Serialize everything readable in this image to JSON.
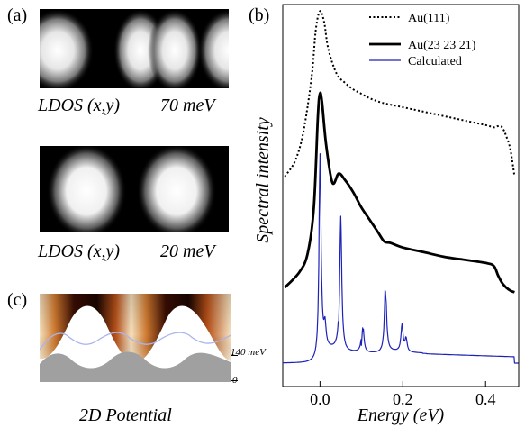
{
  "panels": {
    "a": {
      "letter": "(a)",
      "images": [
        {
          "caption_left": "LDOS (x,y)",
          "caption_right": "70 meV"
        },
        {
          "caption_left": "LDOS (x,y)",
          "caption_right": "20 meV"
        }
      ]
    },
    "b": {
      "letter": "(b)"
    },
    "c": {
      "letter": "(c)",
      "tick_upper": "140 meV",
      "tick_lower": "0",
      "caption": "2D  Potential"
    }
  },
  "colors": {
    "calculated": "#1c22b8",
    "potential_dark": "#1a0500",
    "potential_mid": "#b8521a",
    "potential_light": "#f6e2c0",
    "ground": "#a0a0a0"
  },
  "chart_data": {
    "type": "line",
    "xlabel": "Energy (eV)",
    "ylabel": "Spectral intensity",
    "xlim": [
      -0.09,
      0.48
    ],
    "xticks": [
      0.0,
      0.2,
      0.4
    ],
    "xtick_labels": [
      "0.0",
      "0.2",
      "0.4"
    ],
    "ylim": [
      0,
      1
    ],
    "yticks": [],
    "grid": false,
    "legend_position": "top-right",
    "series": [
      {
        "name": "Au(111)",
        "style": "dotted",
        "color": "#000000",
        "x": [
          -0.085,
          -0.06,
          -0.04,
          -0.02,
          -0.01,
          0.0,
          0.01,
          0.02,
          0.04,
          0.06,
          0.08,
          0.1,
          0.12,
          0.15,
          0.2,
          0.25,
          0.3,
          0.35,
          0.4,
          0.42,
          0.43,
          0.44,
          0.45,
          0.46,
          0.47
        ],
        "y": [
          0.17,
          0.24,
          0.37,
          0.62,
          0.83,
          0.91,
          0.86,
          0.74,
          0.63,
          0.59,
          0.56,
          0.54,
          0.52,
          0.5,
          0.48,
          0.46,
          0.44,
          0.42,
          0.4,
          0.39,
          0.395,
          0.39,
          0.35,
          0.29,
          0.17
        ]
      },
      {
        "name": "Au(23 23 21)",
        "style": "solid",
        "color": "#000000",
        "x": [
          -0.085,
          -0.05,
          -0.03,
          -0.015,
          -0.005,
          0.0,
          0.005,
          0.015,
          0.03,
          0.045,
          0.06,
          0.08,
          0.1,
          0.12,
          0.14,
          0.155,
          0.17,
          0.2,
          0.25,
          0.3,
          0.35,
          0.4,
          0.42,
          0.43,
          0.44,
          0.45,
          0.46,
          0.47
        ],
        "y": [
          0.02,
          0.07,
          0.13,
          0.28,
          0.58,
          0.65,
          0.62,
          0.48,
          0.36,
          0.39,
          0.37,
          0.33,
          0.28,
          0.24,
          0.2,
          0.17,
          0.165,
          0.15,
          0.135,
          0.12,
          0.11,
          0.1,
          0.09,
          0.06,
          0.035,
          0.02,
          0.01,
          0.005
        ]
      },
      {
        "name": "Calculated",
        "style": "solid",
        "color": "#1c22b8",
        "peaks": [
          0.0,
          0.012,
          0.05,
          0.103,
          0.158,
          0.198,
          0.208
        ],
        "peak_heights": [
          0.75,
          0.08,
          0.52,
          0.13,
          0.27,
          0.1,
          0.05
        ],
        "baseline": -0.28
      }
    ]
  }
}
